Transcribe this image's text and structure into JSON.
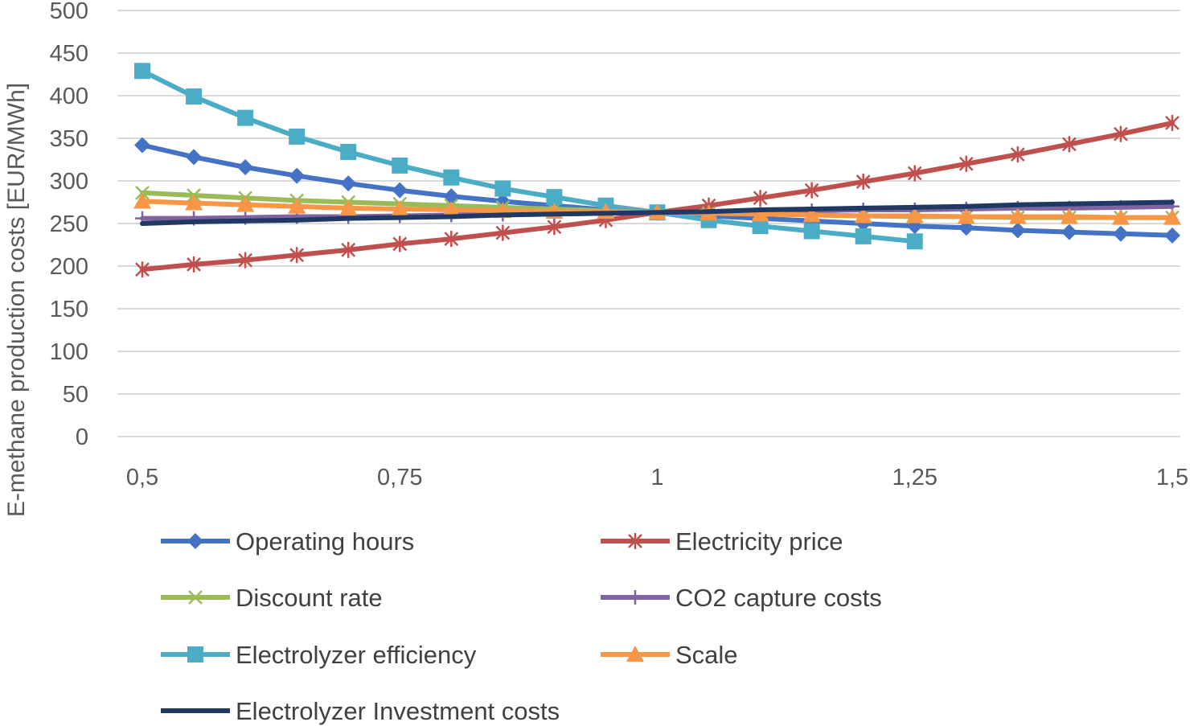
{
  "chart_data": {
    "type": "line",
    "title": "",
    "xlabel": "",
    "ylabel": "E-methane production costs [EUR/MWh]",
    "ylim": [
      0,
      500
    ],
    "yticks": [
      0,
      50,
      100,
      150,
      200,
      250,
      300,
      350,
      400,
      450,
      500
    ],
    "xlim": [
      0.5,
      1.5
    ],
    "xticks": [
      {
        "value": 0.5,
        "label": "0,5"
      },
      {
        "value": 0.75,
        "label": "0,75"
      },
      {
        "value": 1,
        "label": "1"
      },
      {
        "value": 1.25,
        "label": "1,25"
      },
      {
        "value": 1.5,
        "label": "1,5"
      }
    ],
    "grid": "horizontal",
    "legend_position": "bottom",
    "x": [
      0.5,
      0.55,
      0.6,
      0.65,
      0.7,
      0.75,
      0.8,
      0.85,
      0.9,
      0.95,
      1.0,
      1.05,
      1.1,
      1.15,
      1.2,
      1.25,
      1.3,
      1.35,
      1.4,
      1.45,
      1.5
    ],
    "series": [
      {
        "name": "Operating hours",
        "color": "#4472c4",
        "marker": "diamond",
        "values": [
          342,
          328,
          316,
          306,
          297,
          289,
          282,
          276,
          271,
          266,
          263,
          259,
          256,
          253,
          250,
          247,
          245,
          242,
          240,
          238,
          236
        ]
      },
      {
        "name": "Electricity price",
        "color": "#c0504d",
        "marker": "asterisk",
        "values": [
          196,
          202,
          207,
          213,
          219,
          226,
          232,
          239,
          246,
          254,
          263,
          271,
          280,
          289,
          299,
          309,
          320,
          331,
          343,
          355,
          368
        ]
      },
      {
        "name": "Discount rate",
        "color": "#9bbb59",
        "marker": "x",
        "values": [
          286,
          283,
          280,
          277,
          275,
          273,
          271,
          269,
          267,
          265,
          263,
          262,
          261,
          260,
          259,
          258,
          258,
          257,
          257,
          257,
          257
        ]
      },
      {
        "name": "CO2 capture costs",
        "color": "#8064a2",
        "marker": "plus",
        "values": [
          256,
          256,
          257,
          258,
          258,
          259,
          260,
          261,
          261,
          262,
          263,
          263,
          264,
          265,
          266,
          266,
          267,
          268,
          268,
          269,
          270
        ]
      },
      {
        "name": "Electrolyzer efficiency",
        "color": "#4bacc6",
        "marker": "square",
        "values": [
          429,
          399,
          374,
          352,
          334,
          318,
          304,
          291,
          281,
          271,
          263,
          254,
          247,
          241,
          235,
          229,
          null,
          null,
          null,
          null,
          null
        ]
      },
      {
        "name": "Scale",
        "color": "#f79646",
        "marker": "triangle",
        "values": [
          276,
          274,
          272,
          270,
          268,
          267,
          266,
          265,
          264,
          264,
          263,
          262,
          261,
          260,
          259,
          259,
          258,
          258,
          258,
          257,
          257
        ]
      },
      {
        "name": "Electrolyzer Investment costs",
        "color": "#1f3864",
        "marker": "none",
        "values": [
          250,
          252,
          253,
          254,
          256,
          257,
          258,
          260,
          261,
          262,
          263,
          264,
          266,
          267,
          268,
          269,
          270,
          272,
          273,
          274,
          275
        ]
      }
    ]
  }
}
